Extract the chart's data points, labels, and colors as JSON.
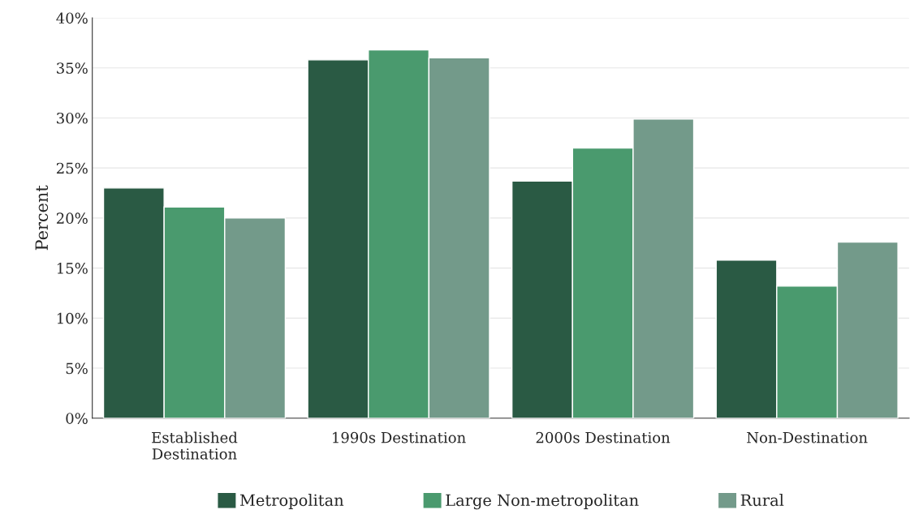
{
  "chart_data": {
    "type": "bar",
    "ylabel": "Percent",
    "categories": [
      "Established\nDestination",
      "1990s Destination",
      "2000s Destination",
      "Non-Destination"
    ],
    "series": [
      {
        "name": "Metropolitan",
        "color": "#2a5a44",
        "values": [
          23.0,
          35.8,
          23.7,
          15.8
        ]
      },
      {
        "name": "Large Non-metropolitan",
        "color": "#4a9a6e",
        "values": [
          21.1,
          36.8,
          27.0,
          13.2
        ]
      },
      {
        "name": "Rural",
        "color": "#739a8a",
        "values": [
          20.0,
          36.0,
          29.9,
          17.6
        ]
      }
    ],
    "ylim": [
      0,
      40
    ],
    "yticks": [
      {
        "value": 0,
        "label": "0%"
      },
      {
        "value": 5,
        "label": "5%"
      },
      {
        "value": 10,
        "label": "10%"
      },
      {
        "value": 15,
        "label": "15%"
      },
      {
        "value": 20,
        "label": "20%"
      },
      {
        "value": 25,
        "label": "25%"
      },
      {
        "value": 30,
        "label": "30%"
      },
      {
        "value": 35,
        "label": "35%"
      },
      {
        "value": 40,
        "label": "40%"
      }
    ],
    "grid": "y",
    "legend": "bottom"
  }
}
